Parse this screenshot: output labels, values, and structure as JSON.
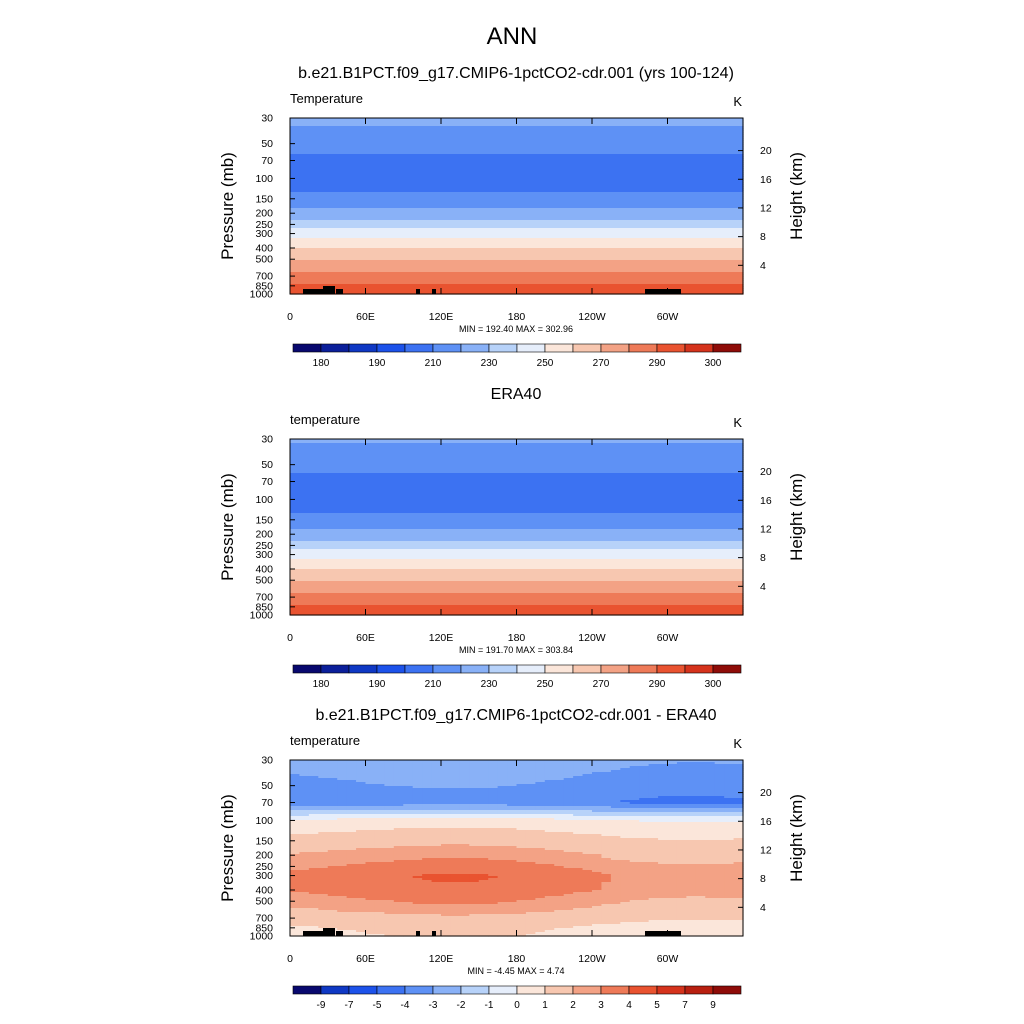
{
  "figure": {
    "title": "ANN"
  },
  "chart_data": [
    {
      "type": "heatmap",
      "subtitle": "b.e21.B1PCT.f09_g17.CMIP6-1pctCO2-cdr.001 (yrs 100-124)",
      "variable_label": "Temperature",
      "units": "K",
      "ylabel": "Pressure (mb)",
      "ylabel_right": "Height (km)",
      "x_ticks": [
        "0",
        "60E",
        "120E",
        "180",
        "120W",
        "60W"
      ],
      "y_ticks": [
        "30",
        "50",
        "70",
        "100",
        "150",
        "200",
        "250",
        "300",
        "400",
        "500",
        "700",
        "850",
        "1000"
      ],
      "y_right_ticks": [
        "20",
        "16",
        "12",
        "8",
        "4"
      ],
      "stats": "MIN = 192.40  MAX = 302.96",
      "colorbar_labels": [
        "180",
        "190",
        "210",
        "230",
        "250",
        "270",
        "290",
        "300"
      ],
      "profile_levels_mb": [
        30,
        50,
        70,
        100,
        150,
        200,
        250,
        300,
        400,
        500,
        700,
        850,
        1000
      ],
      "profile_values_K": [
        212,
        205,
        196,
        194,
        203,
        214,
        225,
        236,
        250,
        260,
        273,
        281,
        290
      ],
      "min": 192.4,
      "max": 302.96
    },
    {
      "type": "heatmap",
      "subtitle": "ERA40",
      "variable_label": "temperature",
      "units": "K",
      "ylabel": "Pressure (mb)",
      "ylabel_right": "Height (km)",
      "x_ticks": [
        "0",
        "60E",
        "120E",
        "180",
        "120W",
        "60W"
      ],
      "y_ticks": [
        "30",
        "50",
        "70",
        "100",
        "150",
        "200",
        "250",
        "300",
        "400",
        "500",
        "700",
        "850",
        "1000"
      ],
      "y_right_ticks": [
        "20",
        "16",
        "12",
        "8",
        "4"
      ],
      "stats": "MIN = 191.70  MAX = 303.84",
      "colorbar_labels": [
        "180",
        "190",
        "210",
        "230",
        "250",
        "270",
        "290",
        "300"
      ],
      "profile_levels_mb": [
        30,
        50,
        70,
        100,
        150,
        200,
        250,
        300,
        400,
        500,
        700,
        850,
        1000
      ],
      "profile_values_K": [
        211,
        204,
        196,
        195,
        203,
        214,
        225,
        236,
        250,
        260,
        273,
        281,
        290
      ],
      "min": 191.7,
      "max": 303.84
    },
    {
      "type": "heatmap",
      "subtitle": "b.e21.B1PCT.f09_g17.CMIP6-1pctCO2-cdr.001 - ERA40",
      "variable_label": "temperature",
      "units": "K",
      "ylabel": "Pressure (mb)",
      "ylabel_right": "Height (km)",
      "x_ticks": [
        "0",
        "60E",
        "120E",
        "180",
        "120W",
        "60W"
      ],
      "y_ticks": [
        "30",
        "50",
        "70",
        "100",
        "150",
        "200",
        "250",
        "300",
        "400",
        "500",
        "700",
        "850",
        "1000"
      ],
      "y_right_ticks": [
        "20",
        "16",
        "12",
        "8",
        "4"
      ],
      "stats": "MIN = -4.45  MAX =  4.74",
      "colorbar_labels": [
        "-9",
        "-7",
        "-5",
        "-4",
        "-3",
        "-2",
        "-1",
        "0",
        "1",
        "2",
        "3",
        "4",
        "5",
        "7",
        "9"
      ],
      "profile_levels_mb": [
        30,
        50,
        70,
        100,
        150,
        200,
        250,
        300,
        400,
        500,
        700,
        850,
        1000
      ],
      "profile_values_K": [
        -2.5,
        -3.2,
        -3.8,
        0.3,
        1.5,
        2.2,
        3.0,
        3.5,
        3.3,
        2.6,
        1.5,
        1.0,
        0.8
      ],
      "min": -4.45,
      "max": 4.74
    }
  ]
}
